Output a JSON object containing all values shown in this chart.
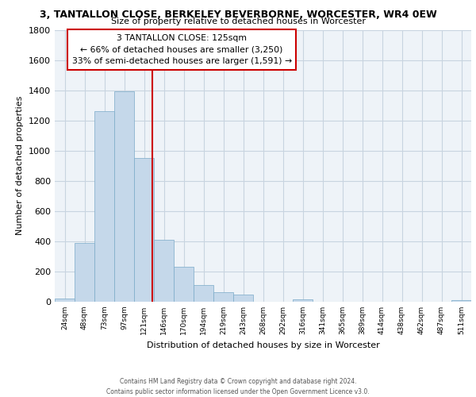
{
  "title_line1": "3, TANTALLON CLOSE, BERKELEY BEVERBORNE, WORCESTER, WR4 0EW",
  "title_line2": "Size of property relative to detached houses in Worcester",
  "xlabel": "Distribution of detached houses by size in Worcester",
  "ylabel": "Number of detached properties",
  "bar_labels": [
    "24sqm",
    "48sqm",
    "73sqm",
    "97sqm",
    "121sqm",
    "146sqm",
    "170sqm",
    "194sqm",
    "219sqm",
    "243sqm",
    "268sqm",
    "292sqm",
    "316sqm",
    "341sqm",
    "365sqm",
    "389sqm",
    "414sqm",
    "438sqm",
    "462sqm",
    "487sqm",
    "511sqm"
  ],
  "bar_values": [
    20,
    390,
    1260,
    1395,
    950,
    410,
    230,
    110,
    65,
    45,
    0,
    0,
    15,
    0,
    0,
    0,
    0,
    0,
    0,
    0,
    12
  ],
  "bar_color": "#c5d8ea",
  "bar_edge_color": "#7aaac8",
  "vline_color": "#cc0000",
  "vline_x": 4.42,
  "annotation_title": "3 TANTALLON CLOSE: 125sqm",
  "annotation_line1": "← 66% of detached houses are smaller (3,250)",
  "annotation_line2": "33% of semi-detached houses are larger (1,591) →",
  "annotation_box_color": "#ffffff",
  "annotation_box_edge": "#cc0000",
  "ylim": [
    0,
    1800
  ],
  "yticks": [
    0,
    200,
    400,
    600,
    800,
    1000,
    1200,
    1400,
    1600,
    1800
  ],
  "footer_line1": "Contains HM Land Registry data © Crown copyright and database right 2024.",
  "footer_line2": "Contains public sector information licensed under the Open Government Licence v3.0.",
  "bg_color": "#ffffff",
  "plot_bg_color": "#eef3f8",
  "grid_color": "#c8d4e0"
}
